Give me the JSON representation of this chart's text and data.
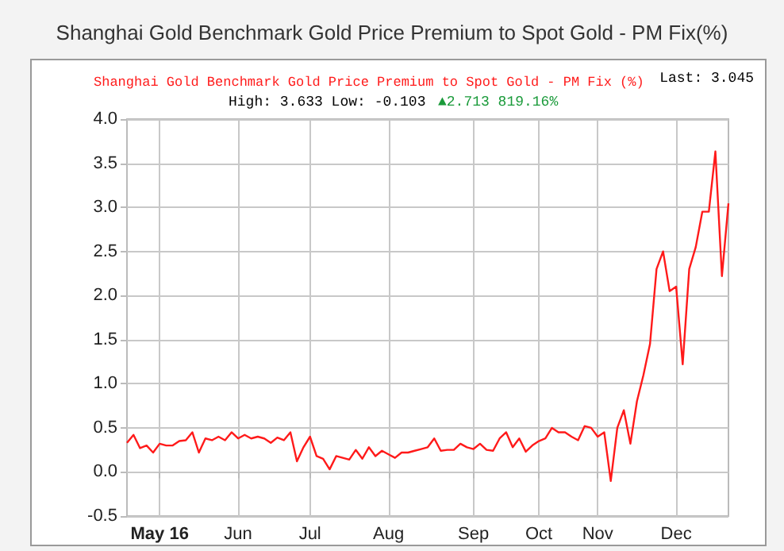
{
  "chart_data": {
    "type": "line",
    "title": "Shanghai Gold Benchmark Gold Price Premium to Spot Gold - PM Fix(%)",
    "annotations": [
      "Last: 3.045",
      "High: 3.633 Low: -0.103",
      "▲2.713 819.16%"
    ],
    "categories": [
      null,
      null,
      null,
      null,
      null,
      "May 16",
      null,
      null,
      null,
      null,
      null,
      null,
      null,
      null,
      null,
      null,
      null,
      "Jun",
      null,
      null,
      null,
      null,
      null,
      null,
      null,
      null,
      null,
      null,
      "Jul",
      null,
      null,
      null,
      null,
      null,
      null,
      null,
      null,
      null,
      null,
      null,
      "Aug",
      null,
      null,
      null,
      null,
      null,
      null,
      null,
      null,
      null,
      null,
      null,
      null,
      "Sep",
      null,
      null,
      null,
      null,
      null,
      null,
      null,
      null,
      null,
      "Oct",
      null,
      null,
      null,
      null,
      null,
      null,
      null,
      null,
      "Nov",
      null,
      null,
      null,
      null,
      null,
      null,
      null,
      null,
      null,
      null,
      null,
      "Dec",
      null,
      null,
      null,
      null,
      null,
      null,
      null,
      null
    ],
    "series": [
      {
        "name": "Shanghai Gold Benchmark Gold Price Premium to Spot Gold - PM Fix (%)",
        "color": "#ff1a1a",
        "values": [
          0.33,
          0.42,
          0.27,
          0.3,
          0.22,
          0.32,
          0.3,
          0.3,
          0.35,
          0.36,
          0.45,
          0.22,
          0.38,
          0.36,
          0.4,
          0.36,
          0.45,
          0.38,
          0.42,
          0.38,
          0.4,
          0.38,
          0.33,
          0.39,
          0.36,
          0.45,
          0.12,
          0.28,
          0.4,
          0.18,
          0.15,
          0.03,
          0.18,
          0.16,
          0.14,
          0.25,
          0.15,
          0.28,
          0.18,
          0.24,
          0.2,
          0.16,
          0.22,
          0.22,
          0.24,
          0.26,
          0.28,
          0.38,
          0.24,
          0.25,
          0.25,
          0.32,
          0.28,
          0.26,
          0.32,
          0.25,
          0.24,
          0.38,
          0.45,
          0.28,
          0.38,
          0.23,
          0.3,
          0.35,
          0.38,
          0.5,
          0.45,
          0.45,
          0.4,
          0.36,
          0.52,
          0.5,
          0.4,
          0.45,
          -0.103,
          0.5,
          0.7,
          0.32,
          0.8,
          1.1,
          1.45,
          2.3,
          2.5,
          2.05,
          2.1,
          1.22,
          2.3,
          2.55,
          2.95,
          2.95,
          3.633,
          2.22,
          3.045
        ]
      }
    ],
    "ylim": [
      -0.5,
      4
    ],
    "yticks": [
      {
        "value": -0.5,
        "label": "-0.5"
      },
      {
        "value": 0,
        "label": "0.0"
      },
      {
        "value": 0.5,
        "label": "0.5"
      },
      {
        "value": 1,
        "label": "1.0"
      },
      {
        "value": 1.5,
        "label": "1.5"
      },
      {
        "value": 2,
        "label": "2.0"
      },
      {
        "value": 2.5,
        "label": "2.5"
      },
      {
        "value": 3,
        "label": "3.0"
      },
      {
        "value": 3.5,
        "label": "3.5"
      },
      {
        "value": 4,
        "label": "4.0"
      }
    ],
    "grid": true,
    "legend": "top",
    "marker": "none",
    "line_style": "solid"
  }
}
